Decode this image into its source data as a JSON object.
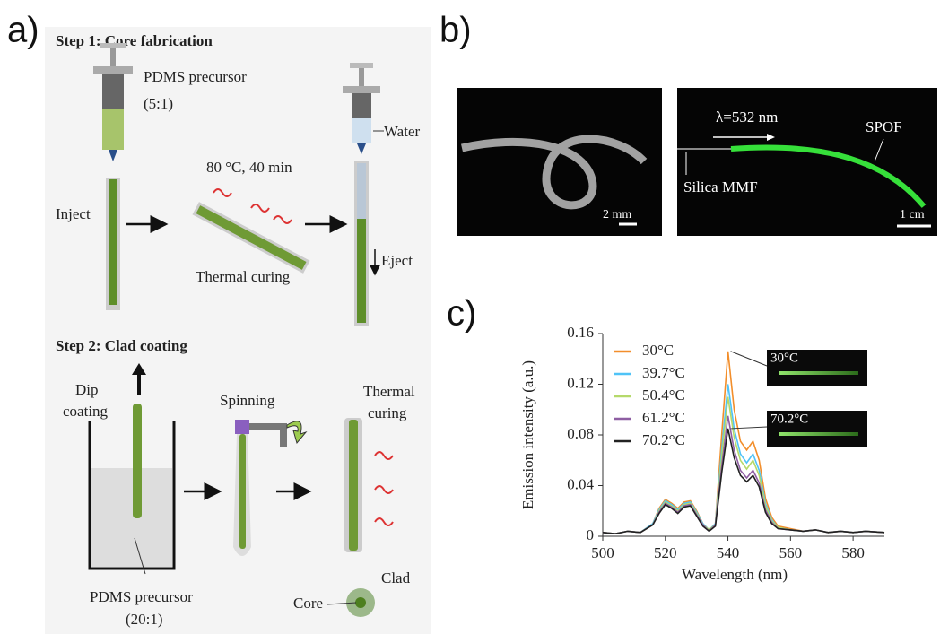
{
  "panel_labels": [
    "a)",
    "b)",
    "c)"
  ],
  "panel_a": {
    "step1": {
      "title": "Step 1: Core fabrication",
      "precursor": "PDMS precursor",
      "ratio": "(5:1)",
      "water": "Water",
      "condition": "80 °C, 40 min",
      "inject": "Inject",
      "curing": "Thermal curing",
      "eject": "Eject"
    },
    "step2": {
      "title": "Step 2: Clad coating",
      "dip": [
        "Dip",
        "coating"
      ],
      "spinning": "Spinning",
      "thermal": [
        "Thermal",
        "curing"
      ],
      "precursor": "PDMS precursor",
      "ratio": "(20:1)",
      "core": "Core",
      "clad": "Clad"
    }
  },
  "panel_b": {
    "scale_left": "2 mm",
    "wavelength": "λ=532 nm",
    "spof": "SPOF",
    "mmf": "Silica MMF",
    "scale_right": "1 cm"
  },
  "chart_data": {
    "type": "line",
    "x_label": "Wavelength (nm)",
    "y_label": "Emission intensity (a.u.)",
    "x": [
      500,
      504,
      508,
      512,
      516,
      518,
      520,
      522,
      524,
      526,
      528,
      530,
      532,
      534,
      536,
      538,
      540,
      542,
      544,
      546,
      548,
      550,
      552,
      554,
      556,
      560,
      564,
      568,
      572,
      576,
      580,
      584,
      590
    ],
    "series": [
      {
        "name": "30°C",
        "color": "#f28e2b",
        "values": [
          0.003,
          0.002,
          0.004,
          0.003,
          0.01,
          0.022,
          0.029,
          0.026,
          0.022,
          0.027,
          0.028,
          0.02,
          0.01,
          0.005,
          0.01,
          0.08,
          0.146,
          0.1,
          0.075,
          0.068,
          0.075,
          0.06,
          0.03,
          0.015,
          0.008,
          0.006,
          0.004,
          0.005,
          0.003,
          0.004,
          0.003,
          0.004,
          0.003
        ]
      },
      {
        "name": "39.7°C",
        "color": "#4fc3f7",
        "values": [
          0.003,
          0.002,
          0.004,
          0.003,
          0.01,
          0.021,
          0.028,
          0.025,
          0.021,
          0.026,
          0.027,
          0.019,
          0.01,
          0.005,
          0.01,
          0.068,
          0.12,
          0.085,
          0.065,
          0.058,
          0.065,
          0.052,
          0.026,
          0.013,
          0.007,
          0.005,
          0.004,
          0.005,
          0.003,
          0.004,
          0.003,
          0.004,
          0.003
        ]
      },
      {
        "name": "50.4°C",
        "color": "#b5d96a",
        "values": [
          0.003,
          0.002,
          0.004,
          0.003,
          0.009,
          0.02,
          0.027,
          0.024,
          0.02,
          0.025,
          0.026,
          0.018,
          0.009,
          0.005,
          0.009,
          0.062,
          0.11,
          0.078,
          0.06,
          0.053,
          0.06,
          0.048,
          0.024,
          0.012,
          0.007,
          0.005,
          0.004,
          0.005,
          0.003,
          0.004,
          0.003,
          0.004,
          0.003
        ]
      },
      {
        "name": "61.2°C",
        "color": "#8e5ea2",
        "values": [
          0.003,
          0.002,
          0.004,
          0.003,
          0.009,
          0.019,
          0.026,
          0.023,
          0.019,
          0.024,
          0.025,
          0.017,
          0.009,
          0.004,
          0.009,
          0.055,
          0.095,
          0.068,
          0.052,
          0.046,
          0.052,
          0.042,
          0.021,
          0.011,
          0.006,
          0.005,
          0.004,
          0.005,
          0.003,
          0.004,
          0.003,
          0.004,
          0.003
        ]
      },
      {
        "name": "70.2°C",
        "color": "#222222",
        "values": [
          0.003,
          0.002,
          0.004,
          0.003,
          0.009,
          0.018,
          0.025,
          0.022,
          0.018,
          0.023,
          0.024,
          0.016,
          0.008,
          0.004,
          0.008,
          0.05,
          0.085,
          0.062,
          0.048,
          0.043,
          0.048,
          0.039,
          0.019,
          0.01,
          0.006,
          0.005,
          0.004,
          0.005,
          0.003,
          0.004,
          0.003,
          0.004,
          0.003
        ]
      }
    ],
    "insets": [
      {
        "label": "30°C"
      },
      {
        "label": "70.2°C"
      }
    ],
    "xlim": [
      500,
      590
    ],
    "xticks": [
      500,
      520,
      540,
      560,
      580
    ],
    "ylim": [
      0,
      0.16
    ],
    "yticks": [
      0,
      0.04,
      0.08,
      0.12,
      0.16
    ]
  }
}
